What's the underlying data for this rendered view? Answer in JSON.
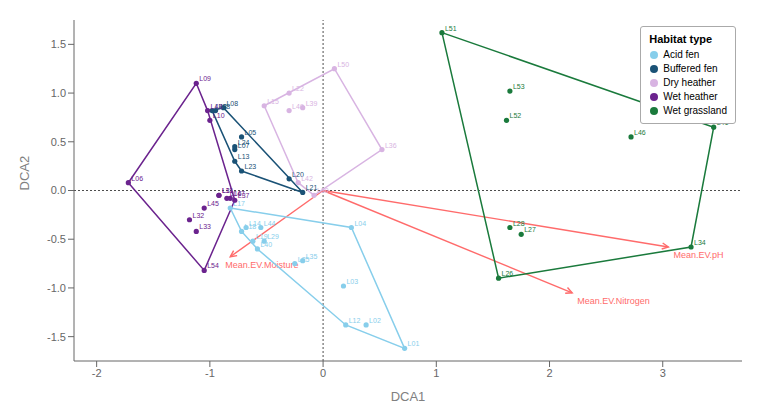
{
  "chart_data": {
    "type": "scatter",
    "xlabel": "DCA1",
    "ylabel": "DCA2",
    "xlim": [
      -2.2,
      3.7
    ],
    "ylim": [
      -1.75,
      1.75
    ],
    "xticks": [
      -2,
      -1,
      0,
      1,
      2,
      3
    ],
    "yticks": [
      -1.5,
      {
        "value": -1.0,
        "label": "-1.0"
      },
      -0.5,
      {
        "value": 0.0,
        "label": "0.0"
      },
      0.5,
      {
        "value": 1.0,
        "label": "1.0"
      },
      1.5
    ],
    "grid": false,
    "legend": "upper right",
    "legend_title": "Habitat type",
    "reference_lines": {
      "x": [
        0
      ],
      "y": [
        0
      ]
    },
    "series": [
      {
        "name": "Acid fen",
        "color": "#87CEEB",
        "labels": [
          "L01",
          "L02",
          "L03",
          "L04",
          "L12",
          "L14",
          "L17",
          "L18",
          "L19",
          "L25",
          "L29",
          "L35",
          "L40",
          "L44"
        ],
        "x": [
          0.72,
          0.38,
          0.18,
          0.25,
          0.2,
          -0.68,
          -0.82,
          -0.72,
          -0.62,
          -0.25,
          -0.52,
          -0.18,
          -0.58,
          -0.55
        ],
        "values": [
          -1.62,
          -1.38,
          -0.98,
          -0.38,
          -1.38,
          -0.38,
          -0.18,
          -0.42,
          -0.52,
          -0.75,
          -0.52,
          -0.72,
          -0.6,
          -0.38
        ]
      },
      {
        "name": "Buffered fen",
        "color": "#1a5276",
        "labels": [
          "L05",
          "L07",
          "L08",
          "L13",
          "L20",
          "L21",
          "L23",
          "L24",
          "L38",
          "L48"
        ],
        "x": [
          -0.72,
          -0.78,
          -0.88,
          -0.78,
          -0.3,
          -0.18,
          -0.72,
          -0.78,
          -0.95,
          -0.98
        ],
        "values": [
          0.55,
          0.42,
          0.85,
          0.3,
          0.12,
          -0.02,
          0.2,
          0.45,
          0.82,
          0.82
        ]
      },
      {
        "name": "Dry heather",
        "color": "#d8b4e2",
        "labels": [
          "L15",
          "L22",
          "L30",
          "L36",
          "L39",
          "L42",
          "L49",
          "L50"
        ],
        "x": [
          -0.52,
          -0.3,
          -0.08,
          0.52,
          -0.18,
          -0.22,
          -0.3,
          0.1
        ],
        "values": [
          0.87,
          1.0,
          -0.05,
          0.42,
          0.85,
          0.08,
          0.82,
          1.25
        ]
      },
      {
        "name": "Wet heather",
        "color": "#6B238E",
        "labels": [
          "L06",
          "L09",
          "L10",
          "L11",
          "L16",
          "L31",
          "L32",
          "L33",
          "L37",
          "L43",
          "L45",
          "L47",
          "L54"
        ],
        "x": [
          -1.72,
          -1.12,
          -1.0,
          -0.92,
          -0.85,
          -0.92,
          -1.18,
          -1.12,
          -0.78,
          -1.02,
          -1.05,
          -0.82,
          -1.05
        ],
        "values": [
          0.08,
          1.1,
          0.72,
          -0.05,
          -0.08,
          -0.05,
          -0.3,
          -0.42,
          -0.1,
          0.82,
          -0.18,
          -0.08,
          -0.82
        ]
      },
      {
        "name": "Wet grassland",
        "color": "#1a7a3c",
        "labels": [
          "L26",
          "L27",
          "L28",
          "L34",
          "L41",
          "L46",
          "L51",
          "L52",
          "L53"
        ],
        "x": [
          1.55,
          1.75,
          1.65,
          3.25,
          3.45,
          2.72,
          1.05,
          1.62,
          1.65
        ],
        "values": [
          -0.9,
          -0.45,
          -0.38,
          -0.58,
          0.65,
          0.55,
          1.62,
          0.72,
          1.02
        ]
      }
    ],
    "annotations": [
      {
        "type": "arrow",
        "text": "Mean.EV.Moisture",
        "x": [
          0,
          -0.82
        ],
        "y": [
          0,
          -0.68
        ],
        "color": "#FF6B6B"
      },
      {
        "type": "arrow",
        "text": "Mean.EV.pH",
        "x": [
          0,
          3.05
        ],
        "y": [
          0,
          -0.58
        ],
        "color": "#FF6B6B"
      },
      {
        "type": "arrow",
        "text": "Mean.EV.Nitrogen",
        "x": [
          0,
          2.2
        ],
        "y": [
          0,
          -1.05
        ],
        "color": "#FF6B6B"
      }
    ]
  }
}
